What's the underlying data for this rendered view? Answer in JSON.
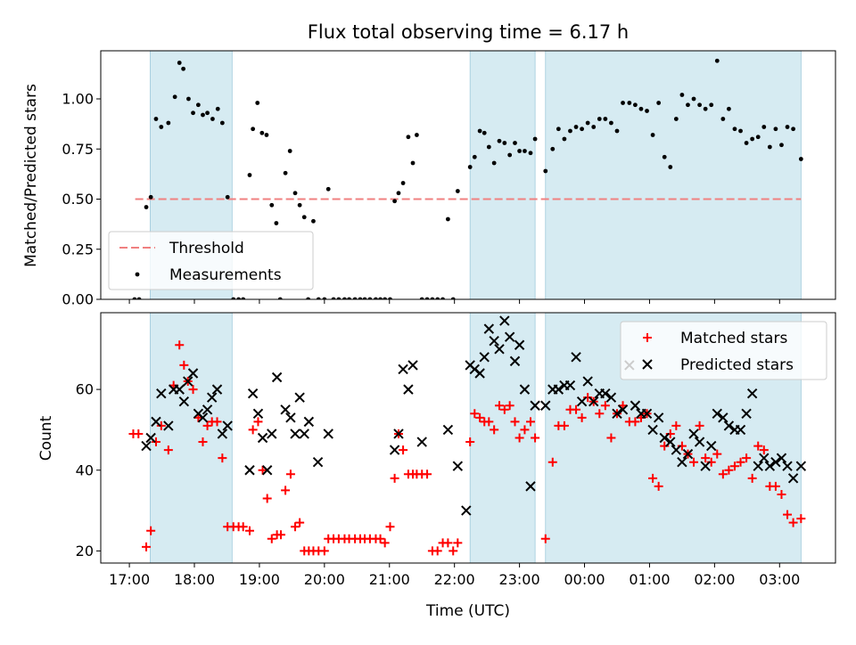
{
  "chart_data": [
    {
      "type": "scatter",
      "title": "Flux total observing time = 6.17 h",
      "ylabel": "Matched/Predicted stars",
      "xlabel": "",
      "x_unit": "hours since 17:00 UTC",
      "xlim": [
        -0.44,
        10.86
      ],
      "ylim": [
        0.0,
        1.24
      ],
      "yticks": [
        0.0,
        0.25,
        0.5,
        0.75,
        1.0
      ],
      "ytick_labels": [
        "0.00",
        "0.25",
        "0.50",
        "0.75",
        "1.00"
      ],
      "shaded_ranges": [
        [
          0.32,
          1.58
        ],
        [
          5.24,
          6.24
        ],
        [
          6.4,
          10.33
        ]
      ],
      "threshold": {
        "name": "Threshold",
        "value": 0.5,
        "x_range": [
          0.09,
          10.33
        ],
        "color": "#f08080"
      },
      "legend": {
        "placement": "lower-left",
        "entries": [
          "Threshold",
          "Measurements"
        ]
      },
      "series": [
        {
          "name": "Measurements",
          "color": "#000000",
          "x": [
            0.08,
            0.15,
            0.26,
            0.33,
            0.41,
            0.49,
            0.6,
            0.7,
            0.77,
            0.83,
            0.91,
            0.98,
            1.06,
            1.13,
            1.2,
            1.28,
            1.36,
            1.43,
            1.51,
            1.6,
            1.68,
            1.75,
            1.85,
            1.9,
            1.97,
            2.04,
            2.11,
            2.19,
            2.26,
            2.32,
            2.4,
            2.47,
            2.55,
            2.62,
            2.69,
            2.75,
            2.83,
            2.91,
            3.0,
            3.06,
            3.14,
            3.22,
            3.31,
            3.38,
            3.47,
            3.55,
            3.62,
            3.7,
            3.79,
            3.86,
            3.93,
            4.01,
            4.08,
            4.14,
            4.21,
            4.29,
            4.36,
            4.42,
            4.5,
            4.58,
            4.66,
            4.74,
            4.82,
            4.9,
            4.98,
            5.05,
            5.24,
            5.31,
            5.39,
            5.46,
            5.53,
            5.61,
            5.69,
            5.77,
            5.85,
            5.93,
            6.0,
            6.08,
            6.17,
            6.24,
            6.4,
            6.51,
            6.6,
            6.69,
            6.78,
            6.87,
            6.96,
            7.05,
            7.14,
            7.23,
            7.32,
            7.41,
            7.5,
            7.59,
            7.69,
            7.78,
            7.87,
            7.96,
            8.05,
            8.14,
            8.23,
            8.32,
            8.41,
            8.5,
            8.59,
            8.68,
            8.77,
            8.86,
            8.95,
            9.04,
            9.13,
            9.22,
            9.31,
            9.4,
            9.49,
            9.58,
            9.67,
            9.76,
            9.85,
            9.94,
            10.03,
            10.12,
            10.21,
            10.33
          ],
          "y": [
            0.0,
            0.0,
            0.46,
            0.51,
            0.9,
            0.86,
            0.88,
            1.01,
            1.18,
            1.15,
            1.0,
            0.93,
            0.97,
            0.92,
            0.93,
            0.9,
            0.95,
            0.88,
            0.51,
            0.0,
            0.0,
            0.0,
            0.62,
            0.85,
            0.98,
            0.83,
            0.82,
            0.47,
            0.38,
            0.0,
            0.63,
            0.74,
            0.53,
            0.47,
            0.41,
            0.0,
            0.39,
            0.0,
            0.0,
            0.55,
            0.0,
            0.0,
            0.0,
            0.0,
            0.0,
            0.0,
            0.0,
            0.0,
            0.0,
            0.0,
            0.0,
            0.0,
            0.49,
            0.53,
            0.58,
            0.81,
            0.68,
            0.82,
            0.0,
            0.0,
            0.0,
            0.0,
            0.0,
            0.4,
            0.0,
            0.54,
            0.66,
            0.71,
            0.84,
            0.83,
            0.76,
            0.68,
            0.79,
            0.78,
            0.72,
            0.78,
            0.74,
            0.74,
            0.73,
            0.8,
            0.64,
            0.75,
            0.85,
            0.8,
            0.84,
            0.86,
            0.85,
            0.88,
            0.86,
            0.9,
            0.9,
            0.88,
            0.84,
            0.98,
            0.98,
            0.97,
            0.95,
            0.94,
            0.82,
            0.98,
            0.71,
            0.66,
            0.9,
            1.02,
            0.97,
            1.0,
            0.97,
            0.95,
            0.97,
            1.19,
            0.9,
            0.95,
            0.85,
            0.84,
            0.78,
            0.8,
            0.81,
            0.86,
            0.76,
            0.85,
            0.77,
            0.86,
            0.85,
            0.7
          ]
        }
      ]
    },
    {
      "type": "scatter",
      "ylabel": "Count",
      "xlabel": "Time (UTC)",
      "x_unit": "hours since 17:00 UTC",
      "xlim": [
        -0.44,
        10.86
      ],
      "ylim": [
        17.0,
        79.0
      ],
      "yticks": [
        20,
        40,
        60
      ],
      "ytick_labels": [
        "20",
        "40",
        "60"
      ],
      "xticks": [
        0,
        1,
        2,
        3,
        4,
        5,
        6,
        7,
        8,
        9,
        10
      ],
      "xtick_labels": [
        "17:00",
        "18:00",
        "19:00",
        "20:00",
        "21:00",
        "22:00",
        "23:00",
        "00:00",
        "01:00",
        "02:00",
        "03:00"
      ],
      "shaded_ranges": [
        [
          0.32,
          1.58
        ],
        [
          5.24,
          6.24
        ],
        [
          6.4,
          10.33
        ]
      ],
      "legend": {
        "placement": "top-right",
        "entries": [
          "Matched stars",
          "Predicted stars"
        ]
      },
      "series": [
        {
          "name": "Matched stars",
          "color": "#ff0000",
          "x": [
            0.06,
            0.14,
            0.26,
            0.33,
            0.41,
            0.49,
            0.6,
            0.68,
            0.77,
            0.84,
            0.9,
            0.98,
            1.06,
            1.13,
            1.2,
            1.27,
            1.35,
            1.43,
            1.51,
            1.6,
            1.68,
            1.75,
            1.85,
            1.9,
            1.98,
            2.05,
            2.12,
            2.19,
            2.27,
            2.33,
            2.4,
            2.48,
            2.55,
            2.62,
            2.69,
            2.76,
            2.83,
            2.91,
            3.0,
            3.06,
            3.14,
            3.22,
            3.31,
            3.38,
            3.47,
            3.55,
            3.62,
            3.7,
            3.79,
            3.86,
            3.93,
            4.01,
            4.08,
            4.14,
            4.21,
            4.29,
            4.36,
            4.42,
            4.5,
            4.58,
            4.66,
            4.74,
            4.82,
            4.9,
            4.98,
            5.05,
            5.24,
            5.31,
            5.39,
            5.46,
            5.53,
            5.61,
            5.69,
            5.77,
            5.85,
            5.93,
            6.0,
            6.08,
            6.17,
            6.24,
            6.4,
            6.51,
            6.6,
            6.69,
            6.78,
            6.87,
            6.96,
            7.05,
            7.14,
            7.23,
            7.32,
            7.41,
            7.5,
            7.59,
            7.69,
            7.78,
            7.87,
            7.96,
            8.05,
            8.14,
            8.23,
            8.32,
            8.41,
            8.5,
            8.59,
            8.68,
            8.77,
            8.86,
            8.95,
            9.04,
            9.13,
            9.22,
            9.31,
            9.4,
            9.49,
            9.58,
            9.67,
            9.76,
            9.85,
            9.94,
            10.03,
            10.12,
            10.21,
            10.33
          ],
          "y": [
            49,
            49,
            21,
            25,
            47,
            51,
            45,
            61,
            71,
            66,
            62,
            60,
            53,
            47,
            51,
            52,
            52,
            43,
            26,
            26,
            26,
            26,
            25,
            50,
            52,
            40,
            33,
            23,
            24,
            24,
            35,
            39,
            26,
            27,
            20,
            20,
            20,
            20,
            20,
            23,
            23,
            23,
            23,
            23,
            23,
            23,
            23,
            23,
            23,
            23,
            22,
            26,
            38,
            49,
            45,
            39,
            39,
            39,
            39,
            39,
            20,
            20,
            22,
            22,
            20,
            22,
            47,
            54,
            53,
            52,
            52,
            50,
            56,
            55,
            56,
            52,
            48,
            50,
            52,
            48,
            23,
            42,
            51,
            51,
            55,
            55,
            53,
            58,
            57,
            54,
            56,
            48,
            54,
            56,
            52,
            52,
            53,
            54,
            38,
            36,
            46,
            49,
            51,
            46,
            44,
            42,
            51,
            43,
            42,
            44,
            39,
            40,
            41,
            42,
            43,
            38,
            46,
            45,
            36,
            36,
            34,
            29,
            27,
            28
          ]
        },
        {
          "name": "Predicted stars",
          "color": "#000000",
          "x": [
            0.26,
            0.33,
            0.41,
            0.49,
            0.6,
            0.68,
            0.77,
            0.84,
            0.9,
            0.98,
            1.06,
            1.13,
            1.2,
            1.27,
            1.35,
            1.43,
            1.51,
            1.85,
            1.9,
            1.98,
            2.05,
            2.12,
            2.19,
            2.27,
            2.4,
            2.48,
            2.55,
            2.62,
            2.69,
            2.76,
            2.9,
            3.06,
            4.08,
            4.14,
            4.21,
            4.29,
            4.36,
            4.5,
            4.9,
            5.05,
            5.18,
            5.24,
            5.31,
            5.39,
            5.46,
            5.53,
            5.61,
            5.69,
            5.77,
            5.85,
            5.93,
            6.0,
            6.08,
            6.17,
            6.24,
            6.4,
            6.51,
            6.6,
            6.69,
            6.78,
            6.87,
            6.96,
            7.05,
            7.14,
            7.23,
            7.32,
            7.41,
            7.5,
            7.59,
            7.69,
            7.78,
            7.87,
            7.96,
            8.05,
            8.14,
            8.23,
            8.32,
            8.41,
            8.5,
            8.59,
            8.68,
            8.77,
            8.86,
            8.95,
            9.04,
            9.13,
            9.22,
            9.31,
            9.4,
            9.49,
            9.58,
            9.67,
            9.76,
            9.85,
            9.94,
            10.03,
            10.12,
            10.21,
            10.33
          ],
          "y": [
            46,
            48,
            52,
            59,
            51,
            60,
            60,
            57,
            62,
            64,
            54,
            53,
            55,
            58,
            60,
            49,
            51,
            40,
            59,
            54,
            48,
            40,
            49,
            63,
            55,
            53,
            49,
            58,
            49,
            52,
            42,
            49,
            45,
            49,
            65,
            60,
            66,
            47,
            50,
            41,
            30,
            66,
            65,
            64,
            68,
            75,
            72,
            70,
            77,
            73,
            67,
            71,
            60,
            36,
            56,
            56,
            60,
            60,
            61,
            61,
            68,
            57,
            62,
            57,
            59,
            59,
            58,
            54,
            55,
            66,
            56,
            54,
            54,
            50,
            53,
            48,
            47,
            45,
            42,
            44,
            49,
            47,
            41,
            46,
            54,
            53,
            51,
            50,
            50,
            54,
            59,
            41,
            43,
            41,
            42,
            43,
            41,
            38,
            41
          ]
        }
      ]
    }
  ]
}
